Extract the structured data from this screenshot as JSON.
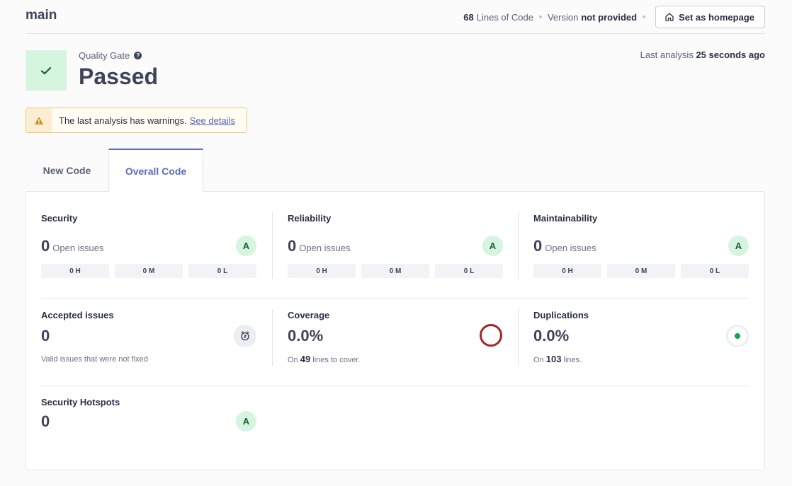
{
  "header": {
    "branch": "main",
    "lines_of_code_value": "68",
    "lines_of_code_label": "Lines of Code",
    "version_label": "Version",
    "version_value": "not provided",
    "homepage_button": "Set as homepage"
  },
  "quality_gate": {
    "label": "Quality Gate",
    "help": "?",
    "status": "Passed",
    "last_analysis_label": "Last analysis",
    "last_analysis_value": "25 seconds ago"
  },
  "warning": {
    "text": "The last analysis has warnings.",
    "link": "See details"
  },
  "tabs": {
    "new_code": "New Code",
    "overall_code": "Overall Code"
  },
  "metrics": {
    "security": {
      "title": "Security",
      "value": "0",
      "label": "Open issues",
      "grade": "A",
      "high": "0 H",
      "medium": "0 M",
      "low": "0 L"
    },
    "reliability": {
      "title": "Reliability",
      "value": "0",
      "label": "Open issues",
      "grade": "A",
      "high": "0 H",
      "medium": "0 M",
      "low": "0 L"
    },
    "maintainability": {
      "title": "Maintainability",
      "value": "0",
      "label": "Open issues",
      "grade": "A",
      "high": "0 H",
      "medium": "0 M",
      "low": "0 L"
    },
    "accepted_issues": {
      "title": "Accepted issues",
      "value": "0",
      "description": "Valid issues that were not fixed"
    },
    "coverage": {
      "title": "Coverage",
      "value": "0.0%",
      "on": "On",
      "lines": "49",
      "suffix": "lines to cover."
    },
    "duplications": {
      "title": "Duplications",
      "value": "0.0%",
      "on": "On",
      "lines": "103",
      "suffix": "lines."
    },
    "security_hotspots": {
      "title": "Security Hotspots",
      "value": "0",
      "grade": "A"
    }
  },
  "colors": {
    "accent": "#5b6bbf",
    "passed_bg": "#d5f5df",
    "passed_check": "#1c5f35",
    "coverage_ring": "#a52525",
    "duplication_dot": "#12a650",
    "warning_border": "#f0c879"
  },
  "icons": {
    "home": "home-icon",
    "check": "check-icon",
    "warning": "warning-icon",
    "alarm": "alarm-clock-icon"
  }
}
